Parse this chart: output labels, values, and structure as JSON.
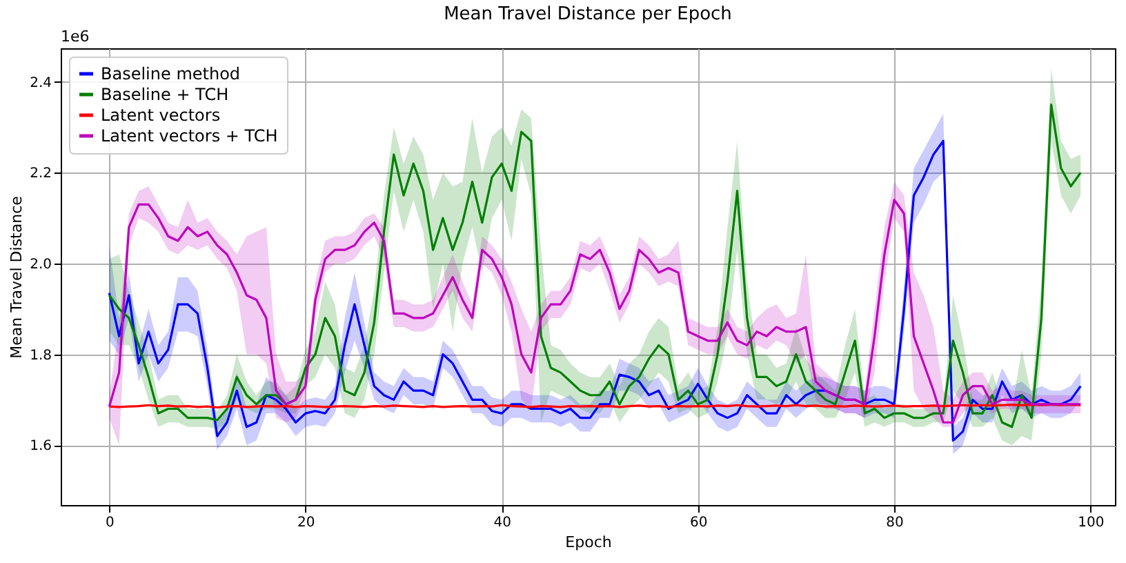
{
  "chart_data": {
    "type": "line",
    "title": "Mean Travel Distance per Epoch",
    "xlabel": "Epoch",
    "ylabel": "Mean Travel Distance",
    "annotations": [
      "1e6"
    ],
    "x": [
      0,
      1,
      2,
      3,
      4,
      5,
      6,
      7,
      8,
      9,
      10,
      11,
      12,
      13,
      14,
      15,
      16,
      17,
      18,
      19,
      20,
      21,
      22,
      23,
      24,
      25,
      26,
      27,
      28,
      29,
      30,
      31,
      32,
      33,
      34,
      35,
      36,
      37,
      38,
      39,
      40,
      41,
      42,
      43,
      44,
      45,
      46,
      47,
      48,
      49,
      50,
      51,
      52,
      53,
      54,
      55,
      56,
      57,
      58,
      59,
      60,
      61,
      62,
      63,
      64,
      65,
      66,
      67,
      68,
      69,
      70,
      71,
      72,
      73,
      74,
      75,
      76,
      77,
      78,
      79,
      80,
      81,
      82,
      83,
      84,
      85,
      86,
      87,
      88,
      89,
      90,
      91,
      92,
      93,
      94,
      95,
      96,
      97,
      98,
      99
    ],
    "xlim": [
      -4.95,
      102.5
    ],
    "xticks": [
      0,
      20,
      40,
      60,
      80,
      100
    ],
    "ylim": [
      1.468,
      2.474
    ],
    "yticks": [
      1.6,
      1.8,
      {
        "value": 2.0,
        "label": "2.0"
      },
      2.2,
      2.4
    ],
    "grid": true,
    "legend": "top left",
    "series": [
      {
        "name": "Baseline method",
        "color": "#0000ff",
        "values": [
          1.935,
          1.84,
          1.93,
          1.78,
          1.85,
          1.78,
          1.81,
          1.91,
          1.91,
          1.89,
          1.77,
          1.62,
          1.65,
          1.72,
          1.64,
          1.65,
          1.71,
          1.7,
          1.68,
          1.65,
          1.67,
          1.675,
          1.67,
          1.7,
          1.82,
          1.91,
          1.82,
          1.73,
          1.71,
          1.7,
          1.74,
          1.72,
          1.72,
          1.71,
          1.8,
          1.78,
          1.74,
          1.7,
          1.7,
          1.675,
          1.67,
          1.69,
          1.69,
          1.68,
          1.68,
          1.68,
          1.67,
          1.68,
          1.66,
          1.66,
          1.69,
          1.69,
          1.755,
          1.75,
          1.74,
          1.71,
          1.72,
          1.68,
          1.69,
          1.7,
          1.735,
          1.7,
          1.67,
          1.66,
          1.67,
          1.71,
          1.69,
          1.67,
          1.67,
          1.71,
          1.69,
          1.71,
          1.72,
          1.72,
          1.71,
          1.7,
          1.7,
          1.69,
          1.7,
          1.7,
          1.69,
          1.9,
          2.15,
          2.19,
          2.24,
          2.27,
          1.61,
          1.63,
          1.7,
          1.68,
          1.68,
          1.74,
          1.7,
          1.71,
          1.69,
          1.7,
          1.69,
          1.69,
          1.7,
          1.73
        ],
        "lower": [
          1.83,
          1.8,
          1.88,
          1.74,
          1.8,
          1.74,
          1.77,
          1.85,
          1.85,
          1.84,
          1.73,
          1.59,
          1.62,
          1.68,
          1.6,
          1.61,
          1.67,
          1.67,
          1.65,
          1.62,
          1.64,
          1.645,
          1.64,
          1.67,
          1.76,
          1.83,
          1.77,
          1.7,
          1.68,
          1.67,
          1.71,
          1.69,
          1.69,
          1.68,
          1.77,
          1.75,
          1.71,
          1.67,
          1.67,
          1.645,
          1.64,
          1.66,
          1.66,
          1.65,
          1.65,
          1.65,
          1.64,
          1.65,
          1.63,
          1.63,
          1.66,
          1.66,
          1.72,
          1.72,
          1.71,
          1.68,
          1.69,
          1.65,
          1.66,
          1.67,
          1.7,
          1.67,
          1.64,
          1.63,
          1.64,
          1.68,
          1.66,
          1.64,
          1.64,
          1.68,
          1.66,
          1.68,
          1.69,
          1.69,
          1.68,
          1.67,
          1.67,
          1.66,
          1.67,
          1.67,
          1.66,
          1.85,
          2.09,
          2.13,
          2.18,
          2.2,
          1.58,
          1.6,
          1.67,
          1.65,
          1.65,
          1.71,
          1.67,
          1.68,
          1.66,
          1.67,
          1.66,
          1.66,
          1.67,
          1.7
        ],
        "upper": [
          2.04,
          1.88,
          1.98,
          1.82,
          1.9,
          1.82,
          1.85,
          1.97,
          1.97,
          1.94,
          1.81,
          1.65,
          1.68,
          1.76,
          1.68,
          1.69,
          1.75,
          1.73,
          1.71,
          1.68,
          1.7,
          1.705,
          1.7,
          1.73,
          1.88,
          1.98,
          1.87,
          1.76,
          1.74,
          1.73,
          1.77,
          1.75,
          1.75,
          1.74,
          1.83,
          1.81,
          1.77,
          1.73,
          1.73,
          1.705,
          1.7,
          1.72,
          1.72,
          1.71,
          1.71,
          1.71,
          1.7,
          1.71,
          1.69,
          1.69,
          1.72,
          1.72,
          1.79,
          1.78,
          1.77,
          1.74,
          1.75,
          1.71,
          1.72,
          1.73,
          1.77,
          1.73,
          1.7,
          1.69,
          1.7,
          1.74,
          1.72,
          1.7,
          1.7,
          1.74,
          1.72,
          1.74,
          1.75,
          1.75,
          1.74,
          1.73,
          1.73,
          1.72,
          1.73,
          1.73,
          1.72,
          1.95,
          2.21,
          2.25,
          2.29,
          2.33,
          1.64,
          1.66,
          1.73,
          1.71,
          1.71,
          1.77,
          1.73,
          1.74,
          1.72,
          1.73,
          1.72,
          1.72,
          1.73,
          1.76
        ]
      },
      {
        "name": "Baseline + TCH",
        "color": "#008000",
        "values": [
          1.93,
          1.9,
          1.88,
          1.82,
          1.75,
          1.67,
          1.68,
          1.68,
          1.66,
          1.66,
          1.66,
          1.655,
          1.68,
          1.75,
          1.71,
          1.69,
          1.71,
          1.71,
          1.69,
          1.7,
          1.77,
          1.8,
          1.88,
          1.84,
          1.72,
          1.71,
          1.76,
          1.87,
          2.07,
          2.24,
          2.15,
          2.22,
          2.16,
          2.03,
          2.1,
          2.03,
          2.09,
          2.18,
          2.09,
          2.19,
          2.22,
          2.16,
          2.29,
          2.27,
          1.84,
          1.77,
          1.76,
          1.74,
          1.72,
          1.71,
          1.71,
          1.74,
          1.69,
          1.73,
          1.75,
          1.79,
          1.82,
          1.8,
          1.7,
          1.72,
          1.69,
          1.7,
          1.8,
          1.96,
          2.16,
          1.88,
          1.75,
          1.75,
          1.73,
          1.74,
          1.8,
          1.74,
          1.72,
          1.7,
          1.69,
          1.76,
          1.83,
          1.67,
          1.68,
          1.66,
          1.67,
          1.67,
          1.66,
          1.66,
          1.67,
          1.67,
          1.83,
          1.76,
          1.67,
          1.67,
          1.71,
          1.65,
          1.64,
          1.71,
          1.66,
          1.88,
          2.35,
          2.21,
          2.17,
          2.2
        ],
        "lower": [
          1.85,
          1.82,
          1.82,
          1.77,
          1.7,
          1.64,
          1.65,
          1.65,
          1.64,
          1.64,
          1.64,
          1.635,
          1.65,
          1.7,
          1.68,
          1.67,
          1.68,
          1.68,
          1.67,
          1.67,
          1.73,
          1.75,
          1.8,
          1.77,
          1.67,
          1.66,
          1.7,
          1.8,
          1.98,
          2.16,
          2.07,
          2.14,
          2.07,
          1.9,
          2.0,
          1.85,
          2.0,
          2.08,
          1.98,
          2.1,
          2.14,
          2.05,
          2.23,
          2.15,
          1.65,
          1.72,
          1.71,
          1.7,
          1.68,
          1.67,
          1.67,
          1.7,
          1.65,
          1.68,
          1.7,
          1.73,
          1.76,
          1.74,
          1.67,
          1.68,
          1.66,
          1.67,
          1.74,
          1.84,
          2.03,
          1.8,
          1.7,
          1.7,
          1.69,
          1.7,
          1.74,
          1.69,
          1.68,
          1.66,
          1.66,
          1.7,
          1.76,
          1.64,
          1.65,
          1.64,
          1.65,
          1.65,
          1.64,
          1.64,
          1.65,
          1.65,
          1.72,
          1.69,
          1.64,
          1.64,
          1.66,
          1.61,
          1.6,
          1.62,
          1.61,
          1.8,
          2.27,
          2.15,
          2.11,
          2.15
        ],
        "upper": [
          2.01,
          2.02,
          1.94,
          1.87,
          1.8,
          1.7,
          1.71,
          1.71,
          1.68,
          1.68,
          1.68,
          1.675,
          1.71,
          1.8,
          1.74,
          1.71,
          1.74,
          1.74,
          1.71,
          1.73,
          1.81,
          1.85,
          1.96,
          1.91,
          1.77,
          1.76,
          1.82,
          1.94,
          2.15,
          2.3,
          2.22,
          2.28,
          2.24,
          2.14,
          2.2,
          2.17,
          2.18,
          2.32,
          2.2,
          2.28,
          2.3,
          2.26,
          2.34,
          2.32,
          2.03,
          1.82,
          1.81,
          1.78,
          1.76,
          1.75,
          1.75,
          1.78,
          1.73,
          1.78,
          1.8,
          1.85,
          1.88,
          1.86,
          1.73,
          1.76,
          1.72,
          1.73,
          1.86,
          2.08,
          2.27,
          1.96,
          1.8,
          1.8,
          1.77,
          1.78,
          1.86,
          1.79,
          1.76,
          1.74,
          1.72,
          1.82,
          1.9,
          1.7,
          1.71,
          1.68,
          1.69,
          1.69,
          1.68,
          1.68,
          1.69,
          1.69,
          1.93,
          1.83,
          1.7,
          1.7,
          1.76,
          1.69,
          1.68,
          1.81,
          1.71,
          1.96,
          2.43,
          2.27,
          2.23,
          2.24
        ]
      },
      {
        "name": "Latent vectors",
        "color": "#ff0000",
        "values": [
          1.685,
          1.684,
          1.685,
          1.686,
          1.688,
          1.686,
          1.687,
          1.685,
          1.686,
          1.684,
          1.685,
          1.683,
          1.685,
          1.686,
          1.684,
          1.685,
          1.686,
          1.685,
          1.686,
          1.684,
          1.686,
          1.685,
          1.684,
          1.685,
          1.686,
          1.685,
          1.684,
          1.686,
          1.685,
          1.687,
          1.686,
          1.685,
          1.684,
          1.686,
          1.684,
          1.685,
          1.686,
          1.685,
          1.686,
          1.685,
          1.688,
          1.686,
          1.685,
          1.684,
          1.686,
          1.685,
          1.684,
          1.686,
          1.685,
          1.686,
          1.685,
          1.686,
          1.684,
          1.686,
          1.687,
          1.685,
          1.686,
          1.684,
          1.686,
          1.685,
          1.686,
          1.685,
          1.687,
          1.686,
          1.688,
          1.686,
          1.685,
          1.686,
          1.687,
          1.686,
          1.688,
          1.686,
          1.687,
          1.685,
          1.686,
          1.685,
          1.687,
          1.686,
          1.685,
          1.686,
          1.687,
          1.685,
          1.686,
          1.686,
          1.687,
          1.686,
          1.687,
          1.688,
          1.687,
          1.688,
          1.687,
          1.688,
          1.689,
          1.688,
          1.689,
          1.688,
          1.689,
          1.688,
          1.689,
          1.688
        ]
      },
      {
        "name": "Latent vectors + TCH",
        "color": "#bf00bf",
        "values": [
          1.685,
          1.76,
          2.08,
          2.13,
          2.13,
          2.1,
          2.06,
          2.05,
          2.08,
          2.06,
          2.07,
          2.04,
          2.02,
          1.98,
          1.93,
          1.92,
          1.88,
          1.72,
          1.69,
          1.7,
          1.73,
          1.92,
          2.01,
          2.03,
          2.03,
          2.04,
          2.07,
          2.09,
          2.05,
          1.89,
          1.89,
          1.88,
          1.88,
          1.89,
          1.93,
          1.97,
          1.92,
          1.88,
          2.03,
          2.01,
          1.97,
          1.91,
          1.8,
          1.76,
          1.88,
          1.91,
          1.91,
          1.94,
          2.02,
          2.01,
          2.03,
          1.98,
          1.9,
          1.94,
          2.03,
          2.01,
          1.98,
          1.99,
          1.98,
          1.85,
          1.84,
          1.83,
          1.83,
          1.87,
          1.83,
          1.82,
          1.85,
          1.84,
          1.86,
          1.85,
          1.85,
          1.86,
          1.74,
          1.72,
          1.71,
          1.7,
          1.7,
          1.69,
          1.84,
          2.02,
          2.14,
          2.11,
          1.84,
          1.78,
          1.72,
          1.65,
          1.65,
          1.71,
          1.73,
          1.73,
          1.69,
          1.7,
          1.7,
          1.7,
          1.69,
          1.69,
          1.69,
          1.69,
          1.69,
          1.69
        ],
        "lower": [
          1.66,
          1.6,
          2.04,
          2.1,
          2.09,
          2.07,
          2.03,
          2.02,
          2.04,
          2.03,
          2.04,
          2.01,
          1.99,
          1.94,
          1.8,
          1.8,
          1.78,
          1.66,
          1.65,
          1.66,
          1.7,
          1.88,
          1.98,
          2.0,
          2.0,
          2.01,
          2.04,
          2.06,
          2.01,
          1.86,
          1.86,
          1.85,
          1.85,
          1.86,
          1.9,
          1.94,
          1.88,
          1.85,
          2.0,
          1.98,
          1.93,
          1.85,
          1.7,
          1.68,
          1.85,
          1.88,
          1.88,
          1.91,
          1.99,
          1.98,
          2.0,
          1.94,
          1.87,
          1.91,
          2.0,
          1.98,
          1.95,
          1.96,
          1.95,
          1.82,
          1.81,
          1.8,
          1.8,
          1.84,
          1.8,
          1.79,
          1.82,
          1.81,
          1.83,
          1.82,
          1.78,
          1.8,
          1.7,
          1.68,
          1.68,
          1.67,
          1.67,
          1.66,
          1.76,
          1.96,
          2.1,
          2.07,
          1.72,
          1.68,
          1.66,
          1.64,
          1.64,
          1.67,
          1.69,
          1.69,
          1.67,
          1.68,
          1.68,
          1.68,
          1.67,
          1.67,
          1.67,
          1.67,
          1.67,
          1.67
        ],
        "upper": [
          1.71,
          1.86,
          2.11,
          2.16,
          2.17,
          2.13,
          2.09,
          2.08,
          2.14,
          2.09,
          2.1,
          2.07,
          2.05,
          2.02,
          2.06,
          2.07,
          2.08,
          1.8,
          1.74,
          1.74,
          1.76,
          1.96,
          2.05,
          2.06,
          2.06,
          2.07,
          2.1,
          2.11,
          2.08,
          1.92,
          1.92,
          1.91,
          1.91,
          1.92,
          1.97,
          2.02,
          1.96,
          1.91,
          2.06,
          2.04,
          2.01,
          1.96,
          1.9,
          1.85,
          1.91,
          1.94,
          1.94,
          1.97,
          2.05,
          2.04,
          2.06,
          2.01,
          1.93,
          1.97,
          2.06,
          2.04,
          2.01,
          2.02,
          2.05,
          1.88,
          1.87,
          1.86,
          1.86,
          1.9,
          1.86,
          1.85,
          1.88,
          1.9,
          1.91,
          1.88,
          1.89,
          2.02,
          1.78,
          1.76,
          1.74,
          1.73,
          1.73,
          1.72,
          1.9,
          2.08,
          2.18,
          2.15,
          1.98,
          1.93,
          1.86,
          1.72,
          1.7,
          1.74,
          1.76,
          1.76,
          1.72,
          1.73,
          1.72,
          1.72,
          1.71,
          1.71,
          1.71,
          1.71,
          1.71,
          1.71
        ]
      }
    ]
  }
}
